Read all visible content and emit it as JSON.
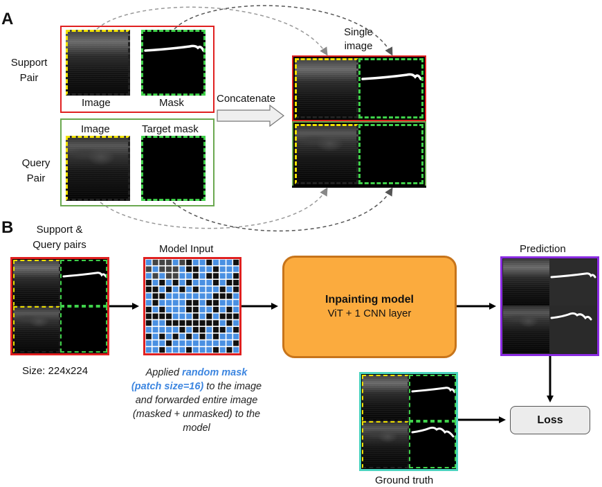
{
  "panel_a": {
    "letter": "A",
    "support_label": [
      "Support",
      "Pair"
    ],
    "query_label": [
      "Query",
      "Pair"
    ],
    "support_image_label": "Image",
    "support_mask_label": "Mask",
    "query_image_label": "Image",
    "query_mask_label": "Target mask",
    "concatenate_label": "Concatenate",
    "single_image_label": [
      "Single",
      "image"
    ]
  },
  "panel_b": {
    "letter": "B",
    "pairs_label": [
      "Support &",
      "Query pairs"
    ],
    "size_label": "Size: 224x224",
    "model_input_label": "Model Input",
    "caption": {
      "prefix": "Applied ",
      "highlight1": "random mask",
      "highlight2": "(patch size=16)",
      "rest1": " to the image",
      "rest2": "and forwarded entire image",
      "rest3": "(masked + unmasked) to the",
      "rest4": "model"
    },
    "model_title": "Inpainting model",
    "model_subtitle": "ViT + 1 CNN layer",
    "prediction_label": "Prediction",
    "loss_label": "Loss",
    "ground_truth_label": "Ground truth"
  },
  "colors": {
    "support_border": "#e02020",
    "query_border": "#6aa84f",
    "yellow_dash": "#f2e200",
    "green_dash": "#3fd14a",
    "mask_blue": "#4a90e2",
    "model_fill": "#fbab3e",
    "prediction_border": "#8a2be2",
    "ground_truth_border": "#4dd4c0"
  }
}
